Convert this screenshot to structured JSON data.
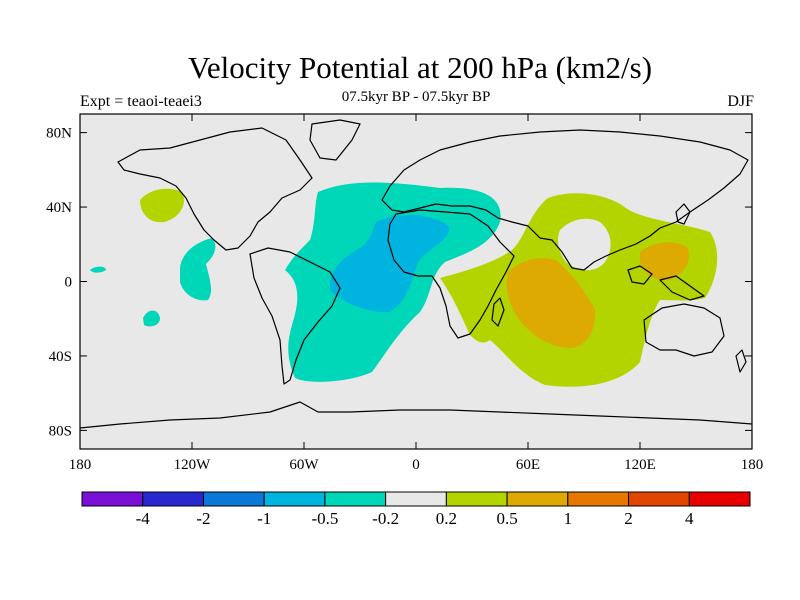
{
  "title": "Velocity Potential at 200 hPa (km2/s)",
  "subtitle": "07.5kyr BP - 07.5kyr BP",
  "experiment": "Expt = teaoi-teaei3",
  "season": "DJF",
  "map": {
    "background": "#e8e8e8",
    "lon_ticks": [
      "180",
      "120W",
      "60W",
      "0",
      "60E",
      "120E",
      "180"
    ],
    "lat_ticks": [
      "80N",
      "40N",
      "0",
      "40S",
      "80S"
    ]
  },
  "colorbar": {
    "colors": [
      "#7a0fd8",
      "#2828d0",
      "#0a78d6",
      "#00b4e0",
      "#00d6b8",
      "#e8e8e8",
      "#b4d400",
      "#dcaa00",
      "#e67800",
      "#e04600",
      "#e80000"
    ],
    "labels": [
      "-4",
      "-2",
      "-1",
      "-0.5",
      "-0.2",
      "0.2",
      "0.5",
      "1",
      "2",
      "4"
    ]
  },
  "anomaly_fields": [
    {
      "name": "atlantic-negative",
      "level": "-0.2 to -0.5",
      "color": "#00d6b8"
    },
    {
      "name": "atlantic-core",
      "level": "-0.5 to -1",
      "color": "#00b4e0"
    },
    {
      "name": "indian-positive",
      "level": "0.2 to 0.5",
      "color": "#b4d400"
    },
    {
      "name": "indian-core",
      "level": "0.5 to 1",
      "color": "#dcaa00"
    }
  ]
}
